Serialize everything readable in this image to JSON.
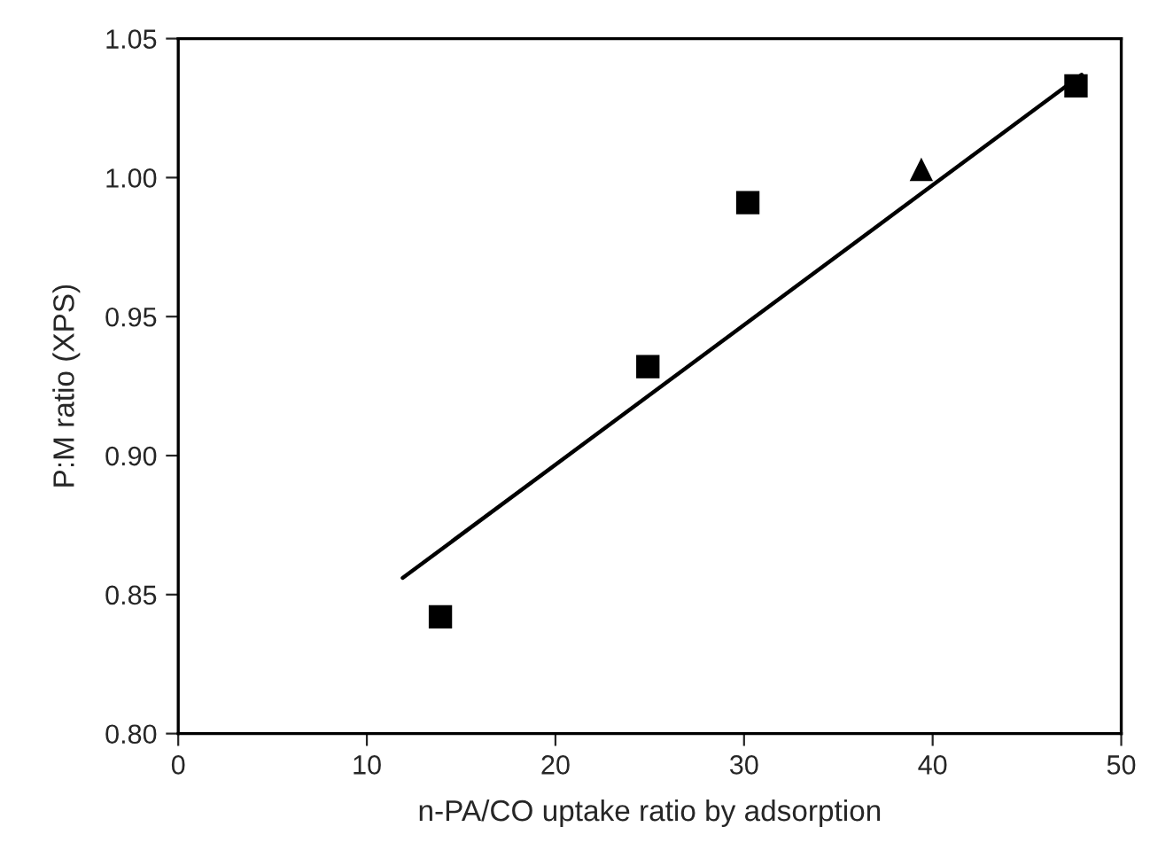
{
  "chart_data": {
    "type": "scatter",
    "xlabel": "n-PA/CO uptake ratio by adsorption",
    "ylabel": "P:M ratio (XPS)",
    "xlim": [
      0,
      50
    ],
    "xticks": [
      0,
      10,
      20,
      30,
      40,
      50
    ],
    "ylim": [
      0.8,
      1.05
    ],
    "yticks": [
      {
        "value": 0.8,
        "label": "0.80"
      },
      {
        "value": 0.85,
        "label": "0.85"
      },
      {
        "value": 0.9,
        "label": "0.90"
      },
      {
        "value": 0.95,
        "label": "0.95"
      },
      {
        "value": 1.0,
        "label": "1.00"
      },
      {
        "value": 1.05,
        "label": "1.05"
      }
    ],
    "grid": false,
    "legend": false,
    "series": [
      {
        "marker": "square",
        "color": "#000000",
        "x": [
          13.9,
          24.9,
          30.2,
          47.6
        ],
        "values": [
          0.842,
          0.932,
          0.991,
          1.033
        ]
      },
      {
        "marker": "triangle",
        "color": "#000000",
        "x": [
          39.4
        ],
        "values": [
          1.003
        ]
      },
      {
        "type": "line",
        "marker": "none",
        "line_style": "solid",
        "color": "#000000",
        "x": [
          11.9,
          47.9
        ],
        "values": [
          0.856,
          1.037
        ]
      }
    ]
  }
}
